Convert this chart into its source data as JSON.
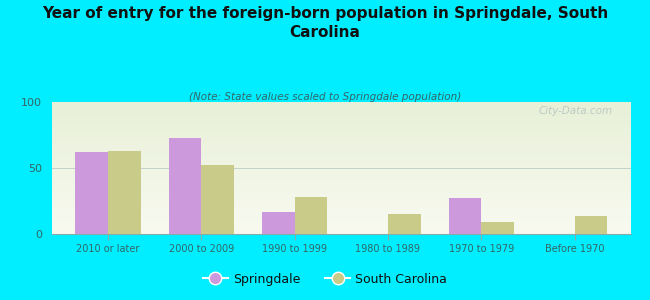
{
  "title": "Year of entry for the foreign-born population in Springdale, South\nCarolina",
  "subtitle": "(Note: State values scaled to Springdale population)",
  "categories": [
    "2010 or later",
    "2000 to 2009",
    "1990 to 1999",
    "1980 to 1989",
    "1970 to 1979",
    "Before 1970"
  ],
  "springdale_values": [
    62,
    73,
    17,
    0,
    27,
    0
  ],
  "sc_values": [
    63,
    52,
    28,
    15,
    9,
    14
  ],
  "springdale_color": "#cc99dd",
  "sc_color": "#c8cc88",
  "background_color": "#00eeff",
  "ylim": [
    0,
    100
  ],
  "yticks": [
    0,
    50,
    100
  ],
  "bar_width": 0.35,
  "legend_springdale": "Springdale",
  "legend_sc": "South Carolina",
  "watermark": "City-Data.com"
}
